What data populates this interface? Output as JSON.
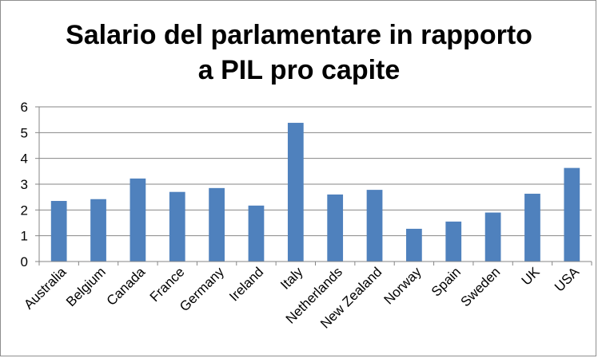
{
  "chart_data": {
    "type": "bar",
    "title_lines": [
      "Salario del parlamentare in rapporto",
      "a PIL pro capite"
    ],
    "categories": [
      "Australia",
      "Belgium",
      "Canada",
      "France",
      "Germany",
      "Ireland",
      "Italy",
      "Netherlands",
      "New Zealand",
      "Norway",
      "Spain",
      "Sweden",
      "UK",
      "USA"
    ],
    "values": [
      2.35,
      2.42,
      3.22,
      2.7,
      2.85,
      2.17,
      5.38,
      2.6,
      2.78,
      1.27,
      1.55,
      1.9,
      2.63,
      3.63
    ],
    "xlabel": "",
    "ylabel": "",
    "ylim": [
      0,
      6
    ],
    "yticks": [
      0,
      1,
      2,
      3,
      4,
      5,
      6
    ],
    "grid": true,
    "legend": "none",
    "bar_color": "#4f81bd",
    "grid_color": "#868686",
    "axis_color": "#868686"
  }
}
